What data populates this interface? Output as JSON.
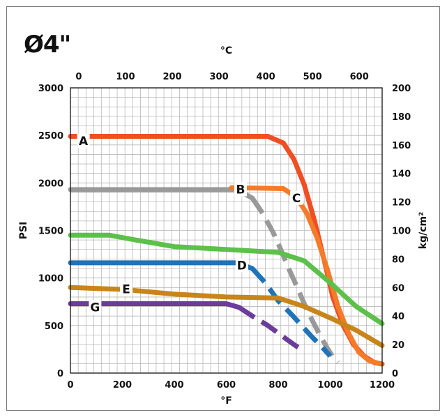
{
  "size_label": "Ø4\"",
  "chart_data": {
    "type": "line",
    "title": "",
    "xlabel": "°F",
    "x2label": "°C",
    "ylabel": "PSI",
    "y2label": "kg/cm²",
    "xlim": [
      0,
      1200
    ],
    "ylim": [
      0,
      3000
    ],
    "x_ticks": [
      0,
      200,
      400,
      600,
      800,
      1000,
      1200
    ],
    "y_ticks": [
      0,
      500,
      1000,
      1500,
      2000,
      2500,
      3000
    ],
    "x2_ticks": [
      0,
      100,
      200,
      300,
      400,
      500,
      600
    ],
    "y2_ticks": [
      0,
      20,
      40,
      60,
      80,
      100,
      120,
      140,
      160,
      180,
      200
    ],
    "grid": true,
    "series": [
      {
        "name": "A",
        "color": "#f04e23",
        "dashed": false,
        "points": [
          [
            0,
            2490
          ],
          [
            760,
            2490
          ],
          [
            820,
            2420
          ],
          [
            860,
            2250
          ],
          [
            900,
            1980
          ],
          [
            940,
            1600
          ],
          [
            980,
            1150
          ],
          [
            1010,
            800
          ],
          [
            1050,
            500
          ],
          [
            1090,
            300
          ],
          [
            1130,
            180
          ],
          [
            1170,
            110
          ],
          [
            1200,
            95
          ]
        ]
      },
      {
        "name": "B",
        "color": "#999999",
        "dashed": true,
        "points": [
          [
            0,
            1930
          ],
          [
            640,
            1930
          ],
          [
            700,
            1840
          ],
          [
            740,
            1680
          ],
          [
            780,
            1480
          ],
          [
            810,
            1300
          ],
          [
            840,
            1100
          ],
          [
            870,
            920
          ],
          [
            900,
            730
          ],
          [
            930,
            560
          ],
          [
            960,
            400
          ],
          [
            985,
            280
          ],
          [
            1010,
            170
          ],
          [
            1030,
            110
          ]
        ]
      },
      {
        "name": "C",
        "color": "#f47b2a",
        "dashed": false,
        "points": [
          [
            620,
            1950
          ],
          [
            820,
            1940
          ],
          [
            870,
            1850
          ],
          [
            910,
            1680
          ],
          [
            950,
            1420
          ],
          [
            990,
            1080
          ],
          [
            1030,
            700
          ],
          [
            1070,
            420
          ],
          [
            1110,
            220
          ],
          [
            1150,
            130
          ],
          [
            1190,
            100
          ]
        ]
      },
      {
        "name": "D",
        "color": "#1f73b8",
        "dashed": true,
        "points": [
          [
            0,
            1160
          ],
          [
            640,
            1160
          ],
          [
            700,
            1100
          ],
          [
            750,
            950
          ],
          [
            800,
            760
          ],
          [
            850,
            620
          ],
          [
            880,
            530
          ],
          [
            930,
            380
          ],
          [
            960,
            300
          ],
          [
            1000,
            180
          ]
        ]
      },
      {
        "name": "E",
        "color": "#c8851a",
        "dashed": false,
        "points": [
          [
            0,
            900
          ],
          [
            200,
            880
          ],
          [
            400,
            830
          ],
          [
            600,
            800
          ],
          [
            800,
            790
          ],
          [
            900,
            700
          ],
          [
            1000,
            580
          ],
          [
            1100,
            450
          ],
          [
            1200,
            290
          ]
        ]
      },
      {
        "name": "",
        "color": "#5cc04a",
        "dashed": false,
        "points": [
          [
            0,
            1450
          ],
          [
            150,
            1450
          ],
          [
            250,
            1400
          ],
          [
            400,
            1330
          ],
          [
            600,
            1300
          ],
          [
            800,
            1270
          ],
          [
            900,
            1180
          ],
          [
            1000,
            950
          ],
          [
            1100,
            700
          ],
          [
            1200,
            520
          ]
        ]
      },
      {
        "name": "G",
        "color": "#6a3d9a",
        "dashed": true,
        "points": [
          [
            0,
            730
          ],
          [
            600,
            730
          ],
          [
            650,
            690
          ],
          [
            700,
            600
          ],
          [
            760,
            500
          ],
          [
            810,
            400
          ],
          [
            860,
            300
          ],
          [
            900,
            230
          ]
        ]
      }
    ],
    "curve_labels": [
      {
        "text": "A",
        "x": 50,
        "y": 2450
      },
      {
        "text": "B",
        "x": 655,
        "y": 1940
      },
      {
        "text": "C",
        "x": 870,
        "y": 1850
      },
      {
        "text": "D",
        "x": 660,
        "y": 1140
      },
      {
        "text": "E",
        "x": 215,
        "y": 890
      },
      {
        "text": "G",
        "x": 95,
        "y": 700
      }
    ]
  }
}
